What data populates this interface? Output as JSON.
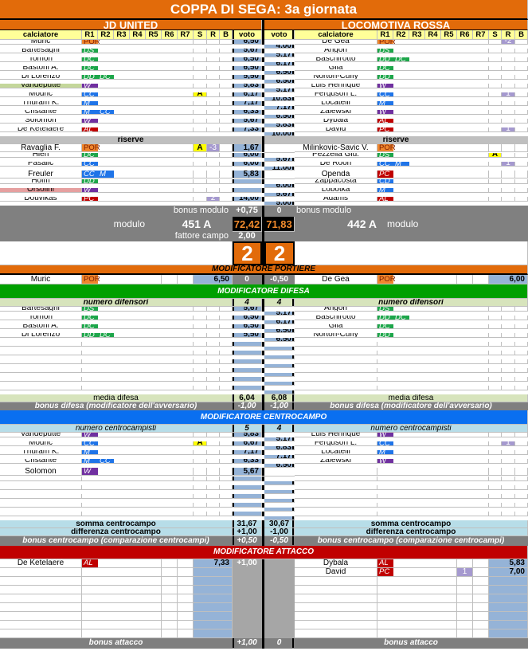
{
  "title": "COPPA DI SEGA: 3a giornata",
  "teams": {
    "home": "JD UNITED",
    "away": "LOCOMOTIVA ROSSA"
  },
  "headers": {
    "calciatore": "calciatore",
    "cols": [
      "R1",
      "R2",
      "R3",
      "R4",
      "R5",
      "R6",
      "R7",
      "S",
      "R",
      "B"
    ],
    "voto": "voto"
  },
  "role_colors": {
    "POR": "#f0862c",
    "DS": "#1da64a",
    "DC": "#1da64a",
    "DD": "#1da64a",
    "CC": "#1f74e8",
    "M": "#1f74e8",
    "CD": "#1f74e8",
    "W": "#7030a0",
    "AL": "#c00000",
    "PC": "#c00000"
  },
  "starters": {
    "home": [
      {
        "name": "Muric",
        "roles": [
          "POR"
        ],
        "voto": "6,50"
      },
      {
        "name": "Bartesaghi",
        "roles": [
          "DS"
        ],
        "voto": "5,67"
      },
      {
        "name": "Tomori",
        "roles": [
          "DC"
        ],
        "voto": "6,50"
      },
      {
        "name": "Bastoni A.",
        "roles": [
          "DC"
        ],
        "voto": "6,50"
      },
      {
        "name": "Di Lorenzo",
        "roles": [
          "DD",
          "DC"
        ],
        "voto": "5,50"
      },
      {
        "name": "Vandeputte",
        "roles": [
          "W"
        ],
        "voto": "5,83",
        "hl": "G"
      },
      {
        "name": "Modric",
        "roles": [
          "CC"
        ],
        "s": "A",
        "voto": "6,17"
      },
      {
        "name": "Thuram K.",
        "roles": [
          "M"
        ],
        "voto": "7,17"
      },
      {
        "name": "Cristante",
        "roles": [
          "M",
          "CC"
        ],
        "voto": "6,33"
      },
      {
        "name": "Solomon",
        "roles": [
          "W"
        ],
        "voto": "5,67"
      },
      {
        "name": "De Ketelaere",
        "roles": [
          "AL"
        ],
        "voto": "7,33"
      }
    ],
    "away": [
      {
        "name": "De Gea",
        "roles": [
          "POR"
        ],
        "r": "-2",
        "voto": "4,00"
      },
      {
        "name": "Angori",
        "roles": [
          "DS"
        ],
        "voto": "5,17"
      },
      {
        "name": "Baschirotto",
        "roles": [
          "DD",
          "DC"
        ],
        "voto": "6,17"
      },
      {
        "name": "Gila",
        "roles": [
          "DC"
        ],
        "voto": "6,50"
      },
      {
        "name": "Norton-Cuffy",
        "roles": [
          "DD"
        ],
        "voto": "6,50"
      },
      {
        "name": "Luis Henrique",
        "roles": [
          "W"
        ],
        "voto": "5,17"
      },
      {
        "name": "Ferguson L.",
        "roles": [
          "CC"
        ],
        "r": "1",
        "voto": "10,83"
      },
      {
        "name": "Locatelli",
        "roles": [
          "M"
        ],
        "voto": "7,17"
      },
      {
        "name": "Zalewski",
        "roles": [
          "W"
        ],
        "voto": "6,50"
      },
      {
        "name": "Dybala",
        "roles": [
          "AL"
        ],
        "voto": "5,83"
      },
      {
        "name": "David",
        "roles": [
          "PC"
        ],
        "r": "1",
        "voto": "10,00"
      }
    ]
  },
  "reserves": {
    "label": "riserve",
    "home": [
      {
        "name": "Ravaglia F.",
        "roles": [
          "POR"
        ],
        "s": "A",
        "r": "-3",
        "voto": "1,67"
      },
      {
        "name": "Hien",
        "roles": [
          "DC"
        ],
        "voto": "6,00"
      },
      {
        "name": "Pasalic",
        "roles": [
          "CC"
        ],
        "voto": "6,00"
      },
      {
        "name": "Freuler",
        "roles": [
          "CC",
          "M"
        ],
        "voto": "5,83"
      },
      {
        "name": "Holm",
        "roles": [
          "DD"
        ],
        "voto": ""
      },
      {
        "name": "Orsolini",
        "roles": [
          "W"
        ],
        "voto": "",
        "hl": "R"
      },
      {
        "name": "Douvikas",
        "roles": [
          "PC"
        ],
        "r": "2",
        "voto": "14,00"
      }
    ],
    "away": [
      {
        "name": "Milinkovic-Savic V.",
        "roles": [
          "POR"
        ],
        "voto": ""
      },
      {
        "name": "Pezzella Giu.",
        "roles": [
          "DS"
        ],
        "s": "A",
        "voto": "5,67"
      },
      {
        "name": "De Roon",
        "roles": [
          "CC",
          "M"
        ],
        "r": "1",
        "voto": "11,00"
      },
      {
        "name": "Openda",
        "roles": [
          "PC"
        ],
        "voto": ""
      },
      {
        "name": "Zappacosta",
        "roles": [
          "CD"
        ],
        "voto": "6,00"
      },
      {
        "name": "Lobotka",
        "roles": [
          "M"
        ],
        "voto": "5,67"
      },
      {
        "name": "Adams",
        "roles": [
          "AL"
        ],
        "voto": "5,00"
      }
    ]
  },
  "bonus_modulo": {
    "label": "bonus modulo",
    "home": "+0,75",
    "away": "0"
  },
  "modulo": {
    "label": "modulo",
    "home": "451 A",
    "away": "442 A",
    "home_total": "72,42",
    "away_total": "71,83"
  },
  "fattore_campo": {
    "label": "fattore campo",
    "home": "2,00"
  },
  "score": {
    "home": "2",
    "away": "2"
  },
  "portiere": {
    "title": "MODIFICATORE PORTIERE",
    "home": {
      "name": "Muric",
      "roles": [
        "POR"
      ],
      "voto": "6,50"
    },
    "away": {
      "name": "De Gea",
      "roles": [
        "POR"
      ],
      "voto": "6,00"
    },
    "home_mod": "0",
    "away_mod": "-0,50"
  },
  "difesa": {
    "title": "MODIFICATORE DIFESA",
    "count_label": "numero difensori",
    "home_count": "4",
    "away_count": "4",
    "home": [
      {
        "name": "Bartesaghi",
        "roles": [
          "DS"
        ],
        "voto": "5,67"
      },
      {
        "name": "Tomori",
        "roles": [
          "DC"
        ],
        "voto": "6,50"
      },
      {
        "name": "Bastoni A.",
        "roles": [
          "DC"
        ],
        "voto": "6,50"
      },
      {
        "name": "Di Lorenzo",
        "roles": [
          "DD",
          "DC"
        ],
        "voto": "5,50"
      }
    ],
    "away": [
      {
        "name": "Angori",
        "roles": [
          "DS"
        ],
        "voto": "5,17"
      },
      {
        "name": "Baschirotto",
        "roles": [
          "DD",
          "DC"
        ],
        "voto": "6,17"
      },
      {
        "name": "Gila",
        "roles": [
          "DC"
        ],
        "voto": "6,50"
      },
      {
        "name": "Norton-Cuffy",
        "roles": [
          "DD"
        ],
        "voto": "6,50"
      }
    ],
    "media_label": "media difesa",
    "home_media": "6,04",
    "away_media": "6,08",
    "bonus_label": "bonus difesa (modificatore dell'avversario)",
    "home_bonus": "-1,00",
    "away_bonus": "-1,00"
  },
  "centrocampo": {
    "title": "MODIFICATORE CENTROCAMPO",
    "count_label": "numero centrocampisti",
    "home_count": "5",
    "away_count": "4",
    "home": [
      {
        "name": "Vandeputte",
        "roles": [
          "W"
        ],
        "voto": "5,83"
      },
      {
        "name": "Modric",
        "roles": [
          "CC"
        ],
        "s": "A",
        "voto": "6,67"
      },
      {
        "name": "Thuram K.",
        "roles": [
          "M"
        ],
        "voto": "7,17"
      },
      {
        "name": "Cristante",
        "roles": [
          "M",
          "CC"
        ],
        "voto": "6,33"
      },
      {
        "name": "Solomon",
        "roles": [
          "W"
        ],
        "voto": "5,67"
      }
    ],
    "away": [
      {
        "name": "Luis Henrique",
        "roles": [
          "W"
        ],
        "voto": "5,17"
      },
      {
        "name": "Ferguson L.",
        "roles": [
          "CC"
        ],
        "r": "1",
        "voto": "6,83"
      },
      {
        "name": "Locatelli",
        "roles": [
          "M"
        ],
        "voto": "7,17"
      },
      {
        "name": "Zalewski",
        "roles": [
          "W"
        ],
        "voto": "6,50"
      }
    ],
    "somma_label": "somma centrocampo",
    "home_somma": "31,67",
    "away_somma": "30,67",
    "diff_label": "differenza centrocampo",
    "home_diff": "+1,00",
    "away_diff": "-1,00",
    "bonus_label": "bonus centrocampo (comparazione centrocampi)",
    "home_bonus": "+0,50",
    "away_bonus": "-0,50"
  },
  "attacco": {
    "title": "MODIFICATORE ATTACCO",
    "home": [
      {
        "name": "De Ketelaere",
        "roles": [
          "AL"
        ],
        "voto": "7,33",
        "mod": "+1,00"
      }
    ],
    "away": [
      {
        "name": "Dybala",
        "roles": [
          "AL"
        ],
        "voto": "5,83"
      },
      {
        "name": "David",
        "roles": [
          "PC"
        ],
        "r": "1",
        "voto": "7,00"
      }
    ],
    "bonus_label": "bonus attacco",
    "home_bonus": "+1,00",
    "away_bonus": "0"
  }
}
